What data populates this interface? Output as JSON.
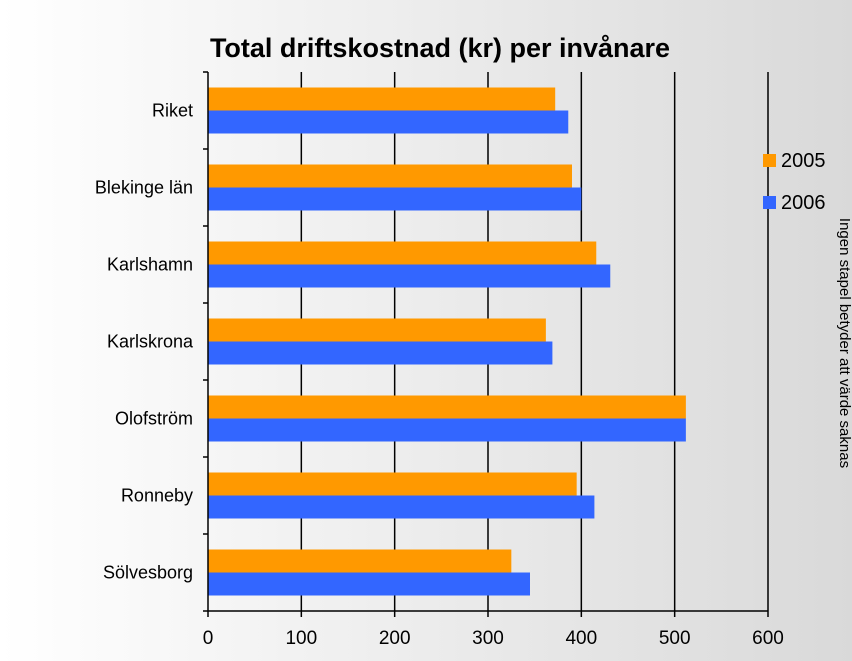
{
  "chart_data": {
    "type": "bar",
    "orientation": "horizontal",
    "title": "Total driftskostnad (kr) per invånare",
    "categories": [
      "Riket",
      "Blekinge län",
      "Karlshamn",
      "Karlskrona",
      "Olofström",
      "Ronneby",
      "Sölvesborg"
    ],
    "series": [
      {
        "name": "2005",
        "color": "#ff9900",
        "values": [
          372,
          390,
          416,
          362,
          512,
          395,
          325
        ]
      },
      {
        "name": "2006",
        "color": "#3366ff",
        "values": [
          386,
          400,
          431,
          369,
          512,
          414,
          345
        ]
      }
    ],
    "xlim": [
      0,
      600
    ],
    "xticks": [
      0,
      100,
      200,
      300,
      400,
      500,
      600
    ],
    "gridlines": "vertical",
    "legend_position": "right",
    "side_note": "Ingen stapel betyder att värde saknas"
  }
}
